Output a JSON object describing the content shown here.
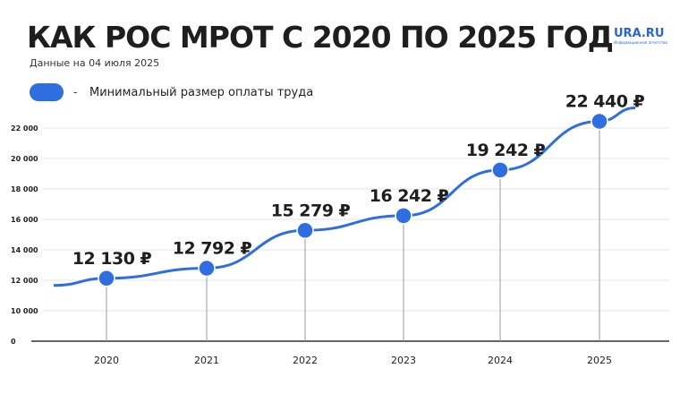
{
  "title": "КАК РОС МРОТ С 2020 ПО 2025 ГОД",
  "subtitle": "Данные на 04 июля 2025",
  "logo": {
    "text": "URA.RU",
    "sub": "Информационное агентство"
  },
  "legend": {
    "dash": "-",
    "label": "Минимальный размер оплаты труда"
  },
  "colors": {
    "series": "#2f6ee0",
    "text": "#1e1e1e",
    "grid": "#e6e6e6"
  },
  "chart_data": {
    "type": "line",
    "categories": [
      "2020",
      "2021",
      "2022",
      "2023",
      "2024",
      "2025"
    ],
    "series": [
      {
        "name": "Минимальный размер оплаты труда",
        "values": [
          12130,
          12792,
          15279,
          16242,
          19242,
          22440
        ]
      }
    ],
    "data_labels": [
      "12 130 ₽",
      "12 792 ₽",
      "15 279 ₽",
      "16 242 ₽",
      "19 242 ₽",
      "22 440 ₽"
    ],
    "yticks": [
      0,
      10000,
      12000,
      14000,
      16000,
      18000,
      20000,
      22000
    ],
    "ytick_labels": [
      "0",
      "10 000",
      "12 000",
      "14 000",
      "16 000",
      "18 000",
      "20 000",
      "22 000"
    ],
    "ylim": [
      0,
      23000
    ],
    "axis_break": "0 to 10000",
    "grid": true,
    "legend_placement": "top-left"
  }
}
